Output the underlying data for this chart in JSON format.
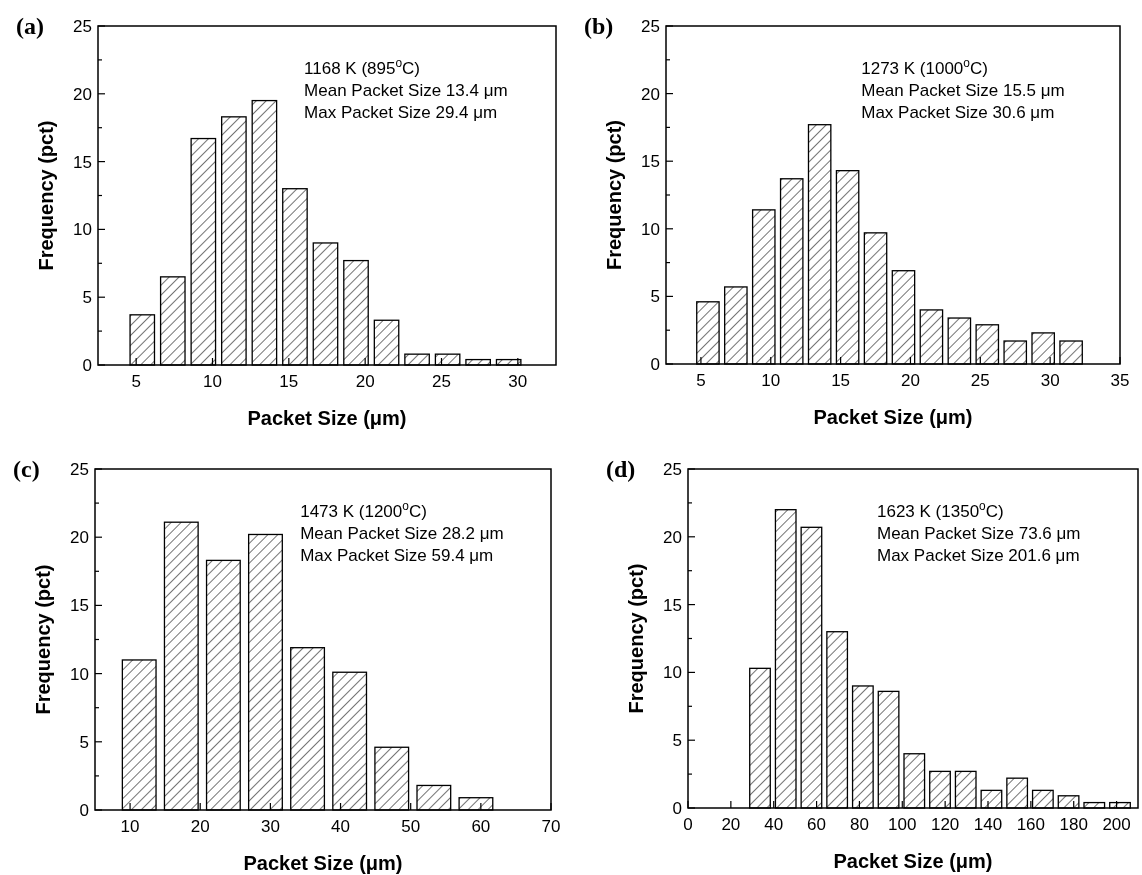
{
  "chart_data": [
    {
      "type": "bar",
      "title": "(a)",
      "xlabel": "Packet Size (μm)",
      "ylabel": "Frequency (pct)",
      "color": "#000000",
      "x": [
        5.4,
        7.4,
        9.4,
        11.4,
        13.4,
        15.4,
        17.4,
        19.4,
        21.4,
        23.4,
        25.4,
        27.4,
        29.4
      ],
      "values": [
        3.7,
        6.5,
        16.7,
        18.3,
        19.5,
        13.0,
        9.0,
        7.7,
        3.3,
        0.8,
        0.8,
        0.4,
        0.4
      ],
      "xlim": [
        2.5,
        32.5
      ],
      "xticks": [
        5,
        10,
        15,
        20,
        25,
        30
      ],
      "ylim": [
        0,
        25
      ],
      "yticks": [
        0,
        {
          "value": 2.5,
          "label": null
        },
        5,
        {
          "value": 7.5,
          "label": null
        },
        10,
        {
          "value": 12.5,
          "label": null
        },
        15,
        {
          "value": 17.5,
          "label": null
        },
        20,
        {
          "value": 22.5,
          "label": null
        },
        25
      ],
      "annotations": [
        "1168 K (895$^{o}$C)",
        "Mean Packet Size 13.4 μm",
        "Max Packet Size 29.4 μm"
      ]
    },
    {
      "type": "bar",
      "title": "(b)",
      "xlabel": "Packet Size (μm)",
      "ylabel": "Frequency (pct)",
      "color": "#000000",
      "x": [
        5.5,
        7.5,
        9.5,
        11.5,
        13.5,
        15.5,
        17.5,
        19.5,
        21.5,
        23.5,
        25.5,
        27.5,
        29.5,
        31.5
      ],
      "values": [
        4.6,
        5.7,
        11.4,
        13.7,
        17.7,
        14.3,
        9.7,
        6.9,
        4.0,
        3.4,
        2.9,
        1.7,
        2.3,
        1.7
      ],
      "xlim": [
        2.5,
        35
      ],
      "xticks": [
        5,
        10,
        15,
        20,
        25,
        30,
        35
      ],
      "ylim": [
        0,
        25
      ],
      "yticks": [
        0,
        {
          "value": 2.5,
          "label": null
        },
        5,
        {
          "value": 7.5,
          "label": null
        },
        10,
        {
          "value": 12.5,
          "label": null
        },
        15,
        {
          "value": 17.5,
          "label": null
        },
        20,
        {
          "value": 22.5,
          "label": null
        },
        25
      ],
      "annotations": [
        "1273 K (1000$^{o}$C)",
        "Mean Packet Size 15.5 μm",
        "Max Packet Size 30.6 μm"
      ]
    },
    {
      "type": "bar",
      "title": "(c)",
      "xlabel": "Packet Size (μm)",
      "ylabel": "Frequency (pct)",
      "color": "#000000",
      "x": [
        11.3,
        17.3,
        23.3,
        29.3,
        35.3,
        41.3,
        47.3,
        53.3,
        59.3
      ],
      "values": [
        11.0,
        21.1,
        18.3,
        20.2,
        11.9,
        10.1,
        4.6,
        1.8,
        0.9
      ],
      "xlim": [
        5,
        70
      ],
      "xticks": [
        10,
        20,
        30,
        40,
        50,
        60,
        70
      ],
      "ylim": [
        0,
        25
      ],
      "yticks": [
        0,
        {
          "value": 2.5,
          "label": null
        },
        5,
        {
          "value": 7.5,
          "label": null
        },
        10,
        {
          "value": 12.5,
          "label": null
        },
        15,
        {
          "value": 17.5,
          "label": null
        },
        20,
        {
          "value": 22.5,
          "label": null
        },
        25
      ],
      "annotations": [
        "1473 K (1200$^{o}$C)",
        "Mean Packet Size 28.2 μm",
        "Max Packet Size 59.4 μm"
      ]
    },
    {
      "type": "bar",
      "title": "(d)",
      "xlabel": "Packet Size (μm)",
      "ylabel": "Frequency (pct)",
      "color": "#000000",
      "x": [
        33.6,
        45.6,
        57.6,
        69.6,
        81.6,
        93.6,
        105.6,
        117.6,
        129.6,
        141.6,
        153.6,
        165.6,
        177.6,
        189.6,
        201.6
      ],
      "values": [
        10.3,
        22.0,
        20.7,
        13.0,
        9.0,
        8.6,
        4.0,
        2.7,
        2.7,
        1.3,
        2.2,
        1.3,
        0.9,
        0.4,
        0.4
      ],
      "xlim": [
        0,
        210
      ],
      "xticks": [
        0,
        20,
        40,
        60,
        80,
        100,
        120,
        140,
        160,
        180,
        200
      ],
      "ylim": [
        0,
        25
      ],
      "yticks": [
        0,
        {
          "value": 2.5,
          "label": null
        },
        5,
        {
          "value": 7.5,
          "label": null
        },
        10,
        {
          "value": 12.5,
          "label": null
        },
        15,
        {
          "value": 17.5,
          "label": null
        },
        20,
        {
          "value": 22.5,
          "label": null
        },
        25
      ],
      "annotations": [
        "1623 K (1350$^{o}$C)",
        "Mean Packet Size 73.6 μm",
        "Max Packet Size 201.6 μm"
      ]
    }
  ]
}
